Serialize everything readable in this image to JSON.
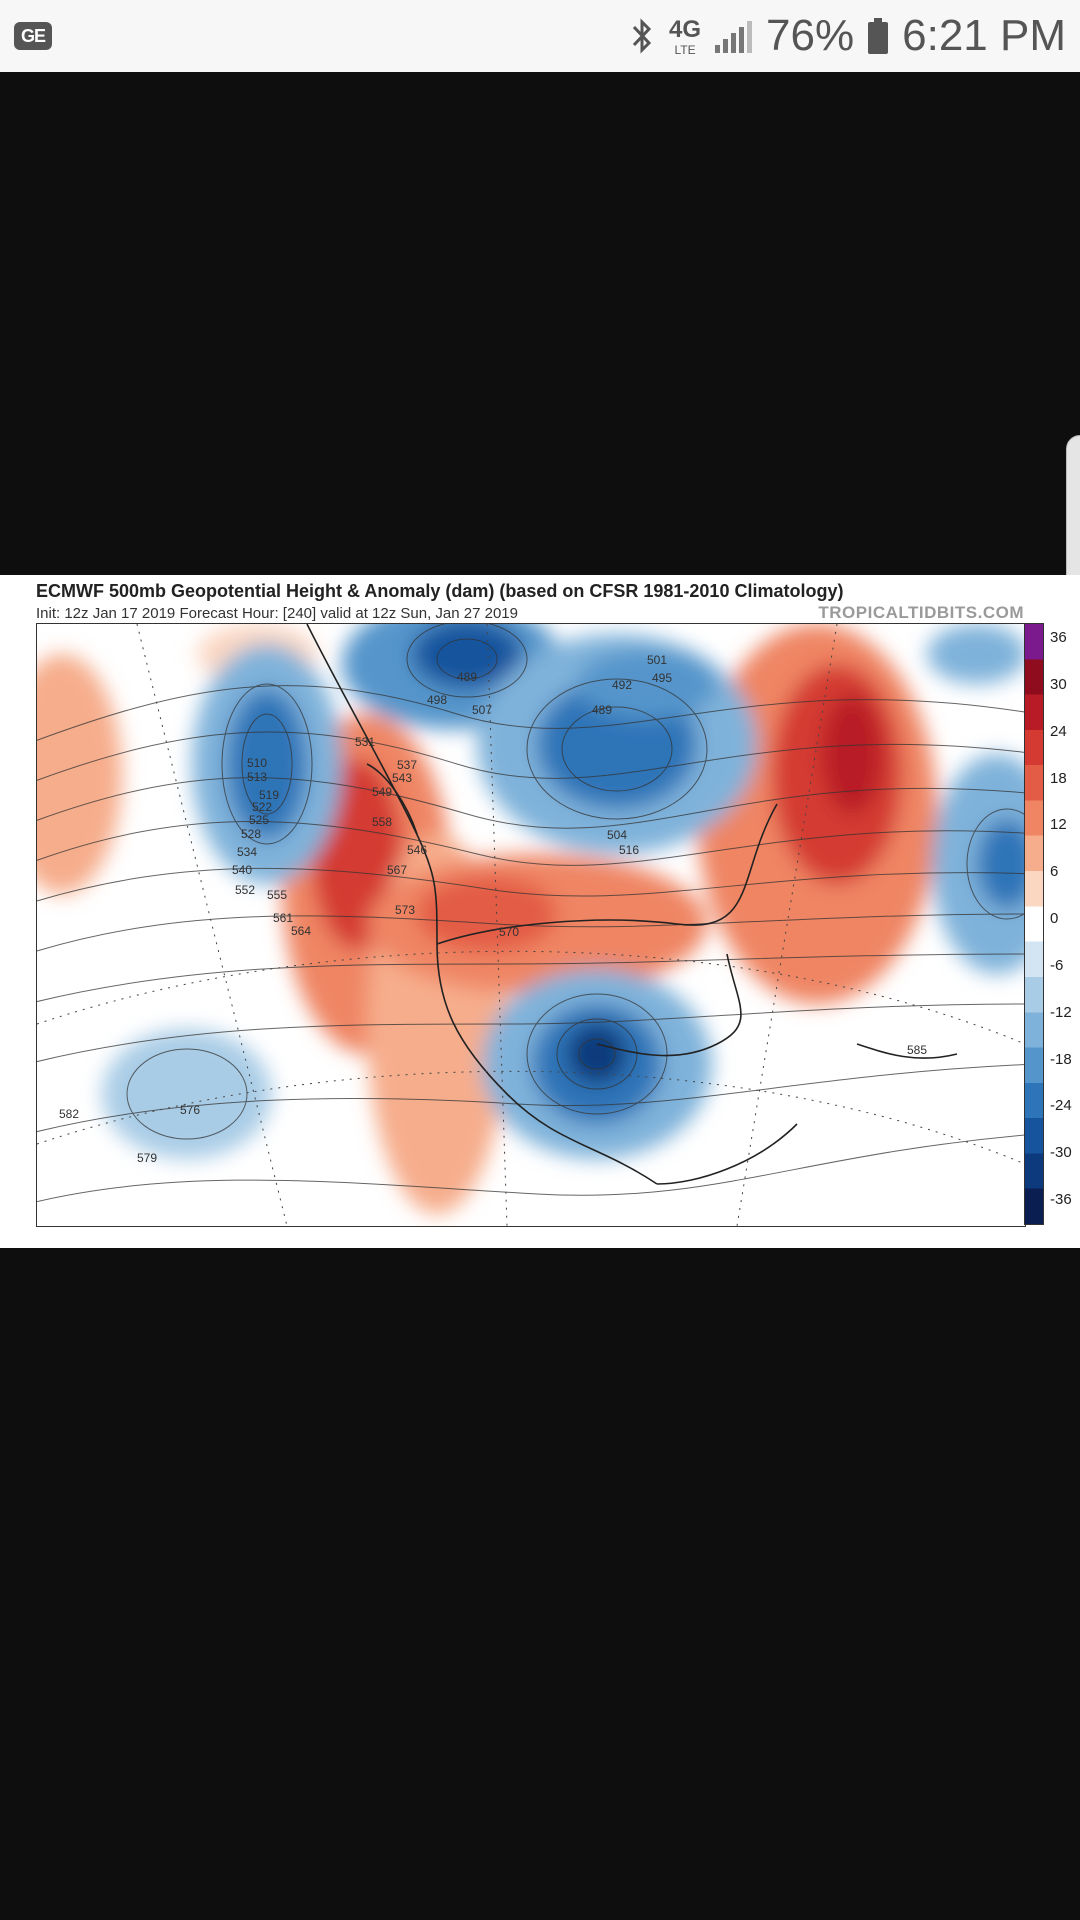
{
  "status_bar": {
    "app_badge": "GE",
    "bluetooth_icon": "bluetooth-icon",
    "network": "4G",
    "network_sub": "LTE",
    "signal_icon": "signal-icon",
    "battery": "76%",
    "battery_icon": "battery-icon",
    "time": "6:21 PM"
  },
  "map": {
    "title": "ECMWF 500mb Geopotential Height & Anomaly (dam) (based on CFSR 1981-2010 Climatology)",
    "init_line": "Init: 12z Jan 17 2019   Forecast Hour: [240]   valid at 12z Sun, Jan 27 2019",
    "brand": "TROPICALTIDBITS.COM",
    "colorbar_labels": [
      "36",
      "30",
      "24",
      "18",
      "12",
      "6",
      "0",
      "-6",
      "-12",
      "-18",
      "-24",
      "-30",
      "-36"
    ],
    "colorbar_colors": [
      "#7a1a8c",
      "#8e0c1e",
      "#b81a26",
      "#d43a31",
      "#e35c45",
      "#ef8563",
      "#f6ad8c",
      "#fbd7c2",
      "#ffffff",
      "#d3e4f2",
      "#a9cce6",
      "#7fb2da",
      "#5495cb",
      "#2d74b8",
      "#17549e",
      "#0c3a7c",
      "#0b1e52"
    ],
    "contour_labels": [
      "489",
      "498",
      "501",
      "495",
      "492",
      "489",
      "507",
      "504",
      "510",
      "513",
      "519",
      "522",
      "525",
      "528",
      "534",
      "540",
      "546",
      "552",
      "555",
      "561",
      "564",
      "567",
      "573",
      "576",
      "579",
      "582",
      "585",
      "537",
      "543",
      "549",
      "558",
      "570",
      "531",
      "516"
    ]
  }
}
